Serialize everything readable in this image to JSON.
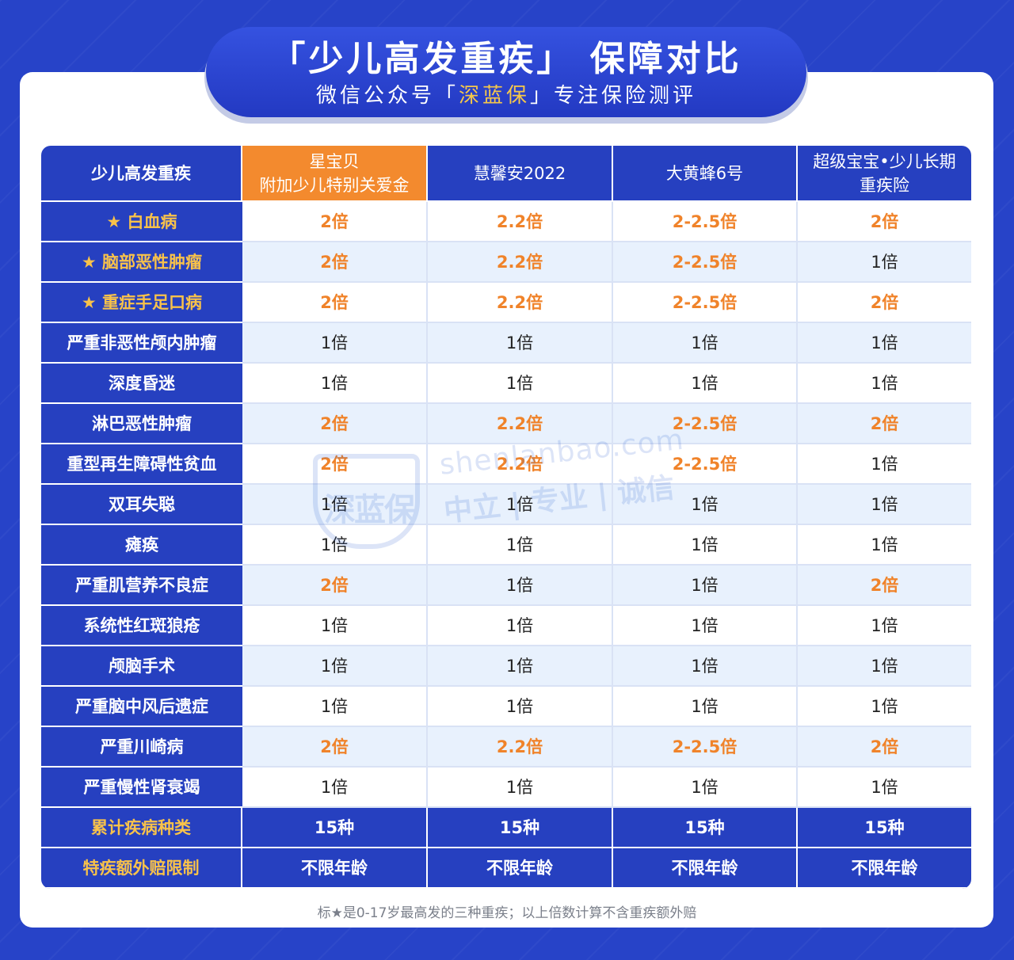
{
  "header": {
    "title": "「少儿高发重疾」 保障对比",
    "subtitle_pre": "微信公众号「",
    "subtitle_brand": "深蓝保",
    "subtitle_post": "」专注保险测评"
  },
  "table": {
    "columns": [
      "少儿高发重疾",
      "星宝贝\n附加少儿特别关爱金",
      "慧馨安2022",
      "大黄蜂6号",
      "超级宝宝•少儿长期\n重疾险"
    ],
    "rows": [
      {
        "label": "★ 白血病",
        "star": true,
        "values": [
          "2倍",
          "2.2倍",
          "2-2.5倍",
          "2倍"
        ],
        "hi": [
          true,
          true,
          true,
          true
        ]
      },
      {
        "label": "★ 脑部恶性肿瘤",
        "star": true,
        "values": [
          "2倍",
          "2.2倍",
          "2-2.5倍",
          "1倍"
        ],
        "hi": [
          true,
          true,
          true,
          false
        ]
      },
      {
        "label": "★ 重症手足口病",
        "star": true,
        "values": [
          "2倍",
          "2.2倍",
          "2-2.5倍",
          "2倍"
        ],
        "hi": [
          true,
          true,
          true,
          true
        ]
      },
      {
        "label": "严重非恶性颅内肿瘤",
        "star": false,
        "values": [
          "1倍",
          "1倍",
          "1倍",
          "1倍"
        ],
        "hi": [
          false,
          false,
          false,
          false
        ]
      },
      {
        "label": "深度昏迷",
        "star": false,
        "values": [
          "1倍",
          "1倍",
          "1倍",
          "1倍"
        ],
        "hi": [
          false,
          false,
          false,
          false
        ]
      },
      {
        "label": "淋巴恶性肿瘤",
        "star": false,
        "values": [
          "2倍",
          "2.2倍",
          "2-2.5倍",
          "2倍"
        ],
        "hi": [
          true,
          true,
          true,
          true
        ]
      },
      {
        "label": "重型再生障碍性贫血",
        "star": false,
        "values": [
          "2倍",
          "2.2倍",
          "2-2.5倍",
          "1倍"
        ],
        "hi": [
          true,
          true,
          true,
          false
        ]
      },
      {
        "label": "双耳失聪",
        "star": false,
        "values": [
          "1倍",
          "1倍",
          "1倍",
          "1倍"
        ],
        "hi": [
          false,
          false,
          false,
          false
        ]
      },
      {
        "label": "瘫痪",
        "star": false,
        "values": [
          "1倍",
          "1倍",
          "1倍",
          "1倍"
        ],
        "hi": [
          false,
          false,
          false,
          false
        ]
      },
      {
        "label": "严重肌营养不良症",
        "star": false,
        "values": [
          "2倍",
          "1倍",
          "1倍",
          "2倍"
        ],
        "hi": [
          true,
          false,
          false,
          true
        ]
      },
      {
        "label": "系统性红斑狼疮",
        "star": false,
        "values": [
          "1倍",
          "1倍",
          "1倍",
          "1倍"
        ],
        "hi": [
          false,
          false,
          false,
          false
        ]
      },
      {
        "label": "颅脑手术",
        "star": false,
        "values": [
          "1倍",
          "1倍",
          "1倍",
          "1倍"
        ],
        "hi": [
          false,
          false,
          false,
          false
        ]
      },
      {
        "label": "严重脑中风后遗症",
        "star": false,
        "values": [
          "1倍",
          "1倍",
          "1倍",
          "1倍"
        ],
        "hi": [
          false,
          false,
          false,
          false
        ]
      },
      {
        "label": "严重川崎病",
        "star": false,
        "values": [
          "2倍",
          "2.2倍",
          "2-2.5倍",
          "2倍"
        ],
        "hi": [
          true,
          true,
          true,
          true
        ]
      },
      {
        "label": "严重慢性肾衰竭",
        "star": false,
        "values": [
          "1倍",
          "1倍",
          "1倍",
          "1倍"
        ],
        "hi": [
          false,
          false,
          false,
          false
        ]
      }
    ],
    "footer_rows": [
      {
        "label": "累计疾病种类",
        "values": [
          "15种",
          "15种",
          "15种",
          "15种"
        ]
      },
      {
        "label": "特疾额外赔限制",
        "values": [
          "不限年龄",
          "不限年龄",
          "不限年龄",
          "不限年龄"
        ]
      }
    ]
  },
  "watermark": {
    "logo_text": "深蓝保",
    "url": "shenlanbao.com",
    "slogan": "中立 | 专业 | 诚信"
  },
  "note": "标★是0-17岁最高发的三种重疾；以上倍数计算不含重疾额外赔",
  "colors": {
    "primary_blue": "#2640c0",
    "highlight_orange": "#f0832a",
    "star_yellow": "#f8c24a",
    "row_alt": "#e8f1fd"
  }
}
